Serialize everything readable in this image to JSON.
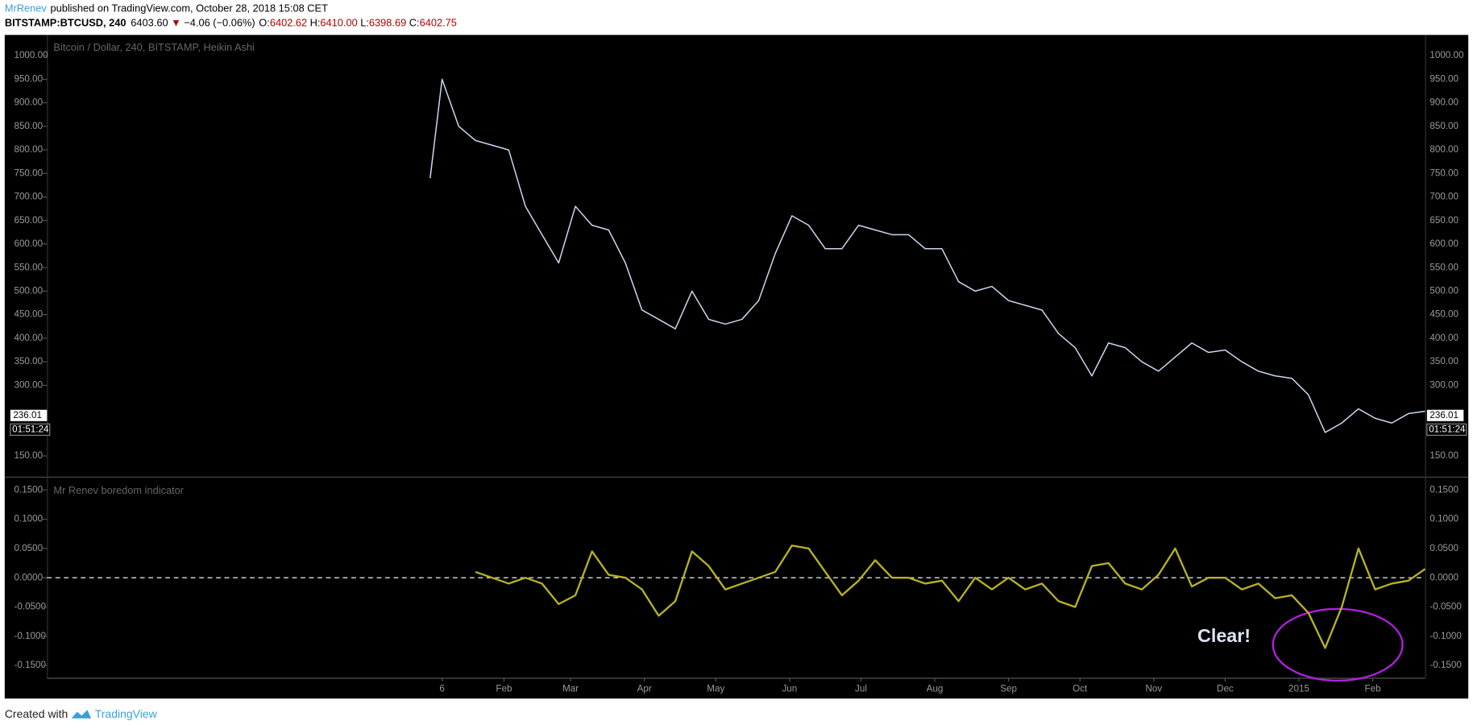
{
  "header": {
    "author": "MrRenev",
    "published": "published on TradingView.com, October 28, 2018 15:08 CET",
    "symbol": "BITSTAMP:BTCUSD, 240",
    "last": "6403.60",
    "arrow": "▼",
    "change": "−4.06 (−0.06%)",
    "ohlc": [
      {
        "label": "O:",
        "value": "6402.62"
      },
      {
        "label": "H:",
        "value": "6410.00"
      },
      {
        "label": "L:",
        "value": "6398.69"
      },
      {
        "label": "C:",
        "value": "6402.75"
      }
    ]
  },
  "chart_data": [
    {
      "type": "line",
      "title": "Bitcoin / Dollar, 240, BITSTAMP, Heikin Ashi",
      "xlim": [
        "2013-07-24",
        "2015-02-23"
      ],
      "ylim": [
        105.9,
        1044.1
      ],
      "yticks": [
        {
          "value": 1000,
          "label": "1000.00"
        },
        {
          "value": 950,
          "label": "950.00"
        },
        {
          "value": 900,
          "label": "900.00"
        },
        {
          "value": 850,
          "label": "850.00"
        },
        {
          "value": 800,
          "label": "800.00"
        },
        {
          "value": 750,
          "label": "750.00"
        },
        {
          "value": 700,
          "label": "700.00"
        },
        {
          "value": 650,
          "label": "650.00"
        },
        {
          "value": 600,
          "label": "600.00"
        },
        {
          "value": 550,
          "label": "550.00"
        },
        {
          "value": 500,
          "label": "500.00"
        },
        {
          "value": 450,
          "label": "450.00"
        },
        {
          "value": 400,
          "label": "400.00"
        },
        {
          "value": 350,
          "label": "350.00"
        },
        {
          "value": 300,
          "label": "300.00"
        },
        {
          "value": 150,
          "label": "150.00"
        }
      ],
      "last_value": 236.01,
      "last_value_label": "236.01",
      "countdown": "01:51:24",
      "x": [
        "2014-01-01",
        "2014-01-06",
        "2014-01-13",
        "2014-01-20",
        "2014-01-27",
        "2014-02-03",
        "2014-02-10",
        "2014-02-17",
        "2014-02-24",
        "2014-03-03",
        "2014-03-10",
        "2014-03-17",
        "2014-03-24",
        "2014-03-31",
        "2014-04-07",
        "2014-04-14",
        "2014-04-21",
        "2014-04-28",
        "2014-05-05",
        "2014-05-12",
        "2014-05-19",
        "2014-05-26",
        "2014-06-02",
        "2014-06-09",
        "2014-06-16",
        "2014-06-23",
        "2014-06-30",
        "2014-07-07",
        "2014-07-14",
        "2014-07-21",
        "2014-07-28",
        "2014-08-04",
        "2014-08-11",
        "2014-08-18",
        "2014-08-25",
        "2014-09-01",
        "2014-09-08",
        "2014-09-15",
        "2014-09-22",
        "2014-09-29",
        "2014-10-06",
        "2014-10-13",
        "2014-10-20",
        "2014-10-27",
        "2014-11-03",
        "2014-11-10",
        "2014-11-17",
        "2014-11-24",
        "2014-12-01",
        "2014-12-08",
        "2014-12-15",
        "2014-12-22",
        "2014-12-29",
        "2015-01-05",
        "2015-01-12",
        "2015-01-19",
        "2015-01-26",
        "2015-02-02",
        "2015-02-09",
        "2015-02-16",
        "2015-02-23"
      ],
      "series": [
        {
          "color": "#c9d6ee",
          "values": [
            740,
            950,
            850,
            820,
            810,
            800,
            680,
            620,
            560,
            680,
            640,
            630,
            560,
            460,
            440,
            420,
            500,
            440,
            430,
            440,
            480,
            580,
            660,
            640,
            590,
            590,
            640,
            630,
            620,
            620,
            590,
            590,
            520,
            500,
            510,
            480,
            470,
            460,
            410,
            380,
            320,
            390,
            380,
            350,
            330,
            360,
            390,
            370,
            375,
            350,
            330,
            320,
            315,
            280,
            200,
            220,
            250,
            230,
            220,
            240,
            245
          ]
        }
      ]
    },
    {
      "type": "line",
      "title": "Mr Renev boredom indicator",
      "xlim": [
        "2013-07-24",
        "2015-02-23"
      ],
      "ylim": [
        -0.171,
        0.171
      ],
      "hline": 0,
      "yticks": [
        {
          "value": 0.15,
          "label": "0.1500"
        },
        {
          "value": 0.1,
          "label": "0.1000"
        },
        {
          "value": 0.05,
          "label": "0.0500"
        },
        {
          "value": 0,
          "label": "0.0000"
        },
        {
          "value": -0.05,
          "label": "-0.0500"
        },
        {
          "value": -0.1,
          "label": "-0.1000"
        },
        {
          "value": -0.15,
          "label": "-0.1500"
        }
      ],
      "xticks": [
        {
          "value": "2014-01-06",
          "label": "6"
        },
        {
          "value": "2014-02-01",
          "label": "Feb"
        },
        {
          "value": "2014-03-01",
          "label": "Mar"
        },
        {
          "value": "2014-04-01",
          "label": "Apr"
        },
        {
          "value": "2014-05-01",
          "label": "May"
        },
        {
          "value": "2014-06-01",
          "label": "Jun"
        },
        {
          "value": "2014-07-01",
          "label": "Jul"
        },
        {
          "value": "2014-08-01",
          "label": "Aug"
        },
        {
          "value": "2014-09-01",
          "label": "Sep"
        },
        {
          "value": "2014-10-01",
          "label": "Oct"
        },
        {
          "value": "2014-11-01",
          "label": "Nov"
        },
        {
          "value": "2014-12-01",
          "label": "Dec"
        },
        {
          "value": "2015-01-01",
          "label": "2015"
        },
        {
          "value": "2015-02-01",
          "label": "Feb"
        }
      ],
      "annotation": "Clear!",
      "x": [
        "2014-01-20",
        "2014-01-27",
        "2014-02-03",
        "2014-02-10",
        "2014-02-17",
        "2014-02-24",
        "2014-03-03",
        "2014-03-10",
        "2014-03-17",
        "2014-03-24",
        "2014-03-31",
        "2014-04-07",
        "2014-04-14",
        "2014-04-21",
        "2014-04-28",
        "2014-05-05",
        "2014-05-12",
        "2014-05-19",
        "2014-05-26",
        "2014-06-02",
        "2014-06-09",
        "2014-06-16",
        "2014-06-23",
        "2014-06-30",
        "2014-07-07",
        "2014-07-14",
        "2014-07-21",
        "2014-07-28",
        "2014-08-04",
        "2014-08-11",
        "2014-08-18",
        "2014-08-25",
        "2014-09-01",
        "2014-09-08",
        "2014-09-15",
        "2014-09-22",
        "2014-09-29",
        "2014-10-06",
        "2014-10-13",
        "2014-10-20",
        "2014-10-27",
        "2014-11-03",
        "2014-11-10",
        "2014-11-17",
        "2014-11-24",
        "2014-12-01",
        "2014-12-08",
        "2014-12-15",
        "2014-12-22",
        "2014-12-29",
        "2015-01-05",
        "2015-01-12",
        "2015-01-19",
        "2015-01-26",
        "2015-02-02",
        "2015-02-09",
        "2015-02-16",
        "2015-02-23"
      ],
      "series": [
        {
          "color": "#b8b322",
          "values": [
            0.01,
            0,
            -0.01,
            0,
            -0.01,
            -0.045,
            -0.03,
            0.045,
            0.005,
            0,
            -0.02,
            -0.065,
            -0.04,
            0.045,
            0.02,
            -0.02,
            -0.01,
            0,
            0.01,
            0.055,
            0.05,
            0.01,
            -0.03,
            -0.005,
            0.03,
            0,
            0,
            -0.01,
            -0.005,
            -0.04,
            0,
            -0.02,
            0,
            -0.02,
            -0.01,
            -0.04,
            -0.05,
            0.02,
            0.025,
            -0.01,
            -0.02,
            0.005,
            0.05,
            -0.015,
            0,
            0,
            -0.02,
            -0.01,
            -0.035,
            -0.03,
            -0.06,
            -0.12,
            -0.05,
            0.05,
            -0.02,
            -0.01,
            -0.005,
            0.015
          ]
        }
      ]
    }
  ],
  "footer": {
    "created": "Created with",
    "brand": "TradingView"
  }
}
